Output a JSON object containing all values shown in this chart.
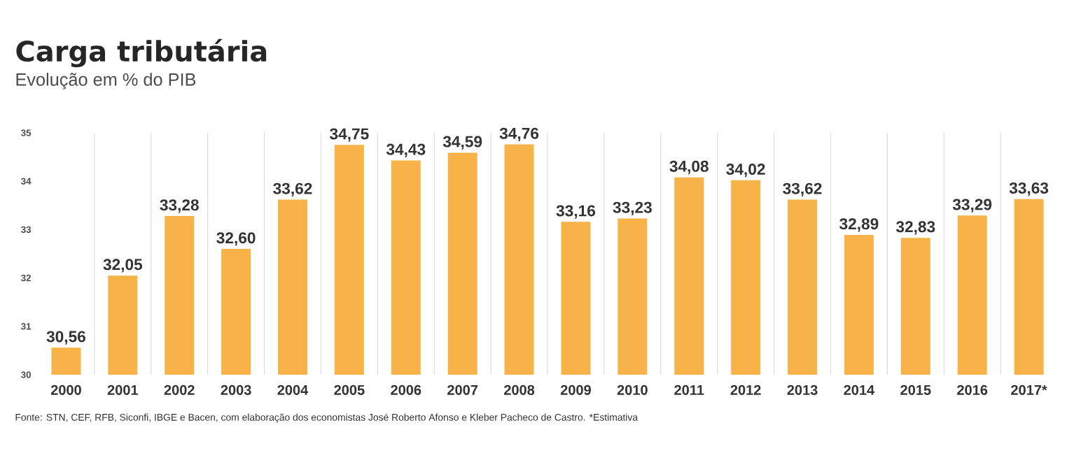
{
  "chart_data": {
    "type": "bar",
    "title": "Carga tributária",
    "subtitle": "Evolução em % do PIB",
    "categories": [
      "2000",
      "2001",
      "2002",
      "2003",
      "2004",
      "2005",
      "2006",
      "2007",
      "2008",
      "2009",
      "2010",
      "2011",
      "2012",
      "2013",
      "2014",
      "2015",
      "2016",
      "2017*"
    ],
    "values": [
      30.56,
      32.05,
      33.28,
      32.6,
      33.62,
      34.75,
      34.43,
      34.59,
      34.76,
      33.16,
      33.23,
      34.08,
      34.02,
      33.62,
      32.89,
      32.83,
      33.29,
      33.63
    ],
    "value_labels": [
      "30,56",
      "32,05",
      "33,28",
      "32,60",
      "33,62",
      "34,75",
      "34,43",
      "34,59",
      "34,76",
      "33,16",
      "33,23",
      "34,08",
      "34,02",
      "33,62",
      "32,89",
      "32,83",
      "33,29",
      "33,63"
    ],
    "color": "#f7b347",
    "ylim": [
      30,
      35
    ],
    "yticks": [
      30,
      31,
      32,
      33,
      34,
      35
    ],
    "grid": "x",
    "annotations": [
      "Fonte: STN, CEF, RFB, Siconfi, IBGE e Bacen, com elaboração dos economistas José Roberto Afonso e Kleber Pacheco de Castro. *Estimativa"
    ]
  }
}
